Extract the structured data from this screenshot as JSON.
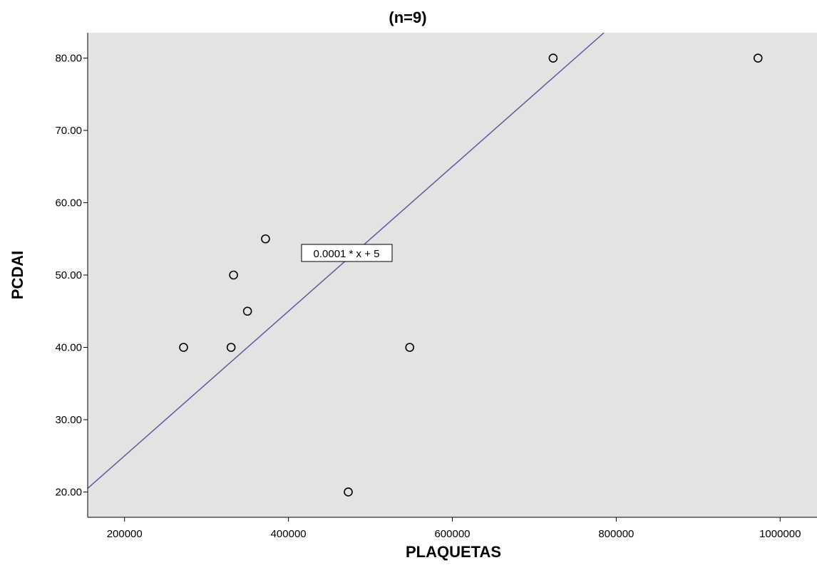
{
  "chart_data": {
    "type": "scatter",
    "title": "(n=9)",
    "xlabel": "PLAQUETAS",
    "ylabel": "PCDAI",
    "xlim": [
      155000,
      1045000
    ],
    "ylim": [
      16.5,
      83.5
    ],
    "x_ticks": [
      200000,
      400000,
      600000,
      800000,
      1000000
    ],
    "x_tick_labels": [
      "200000",
      "400000",
      "600000",
      "800000",
      "1000000"
    ],
    "y_ticks": [
      20,
      30,
      40,
      50,
      60,
      70,
      80
    ],
    "y_tick_labels": [
      "20.00",
      "30.00",
      "40.00",
      "50.00",
      "60.00",
      "70.00",
      "80.00"
    ],
    "points": [
      {
        "x": 272000,
        "y": 40
      },
      {
        "x": 330000,
        "y": 40
      },
      {
        "x": 333000,
        "y": 50
      },
      {
        "x": 350000,
        "y": 45
      },
      {
        "x": 372000,
        "y": 55
      },
      {
        "x": 473000,
        "y": 20
      },
      {
        "x": 548000,
        "y": 40
      },
      {
        "x": 723000,
        "y": 80
      },
      {
        "x": 973000,
        "y": 80
      }
    ],
    "fit_line": {
      "slope": 0.0001,
      "intercept": 5,
      "label": "0.0001 * x + 5"
    },
    "grid": false,
    "colors": {
      "plot_background": "#e3e3e3",
      "fit_line": "#5b5b9a",
      "marker": "#000000"
    }
  }
}
